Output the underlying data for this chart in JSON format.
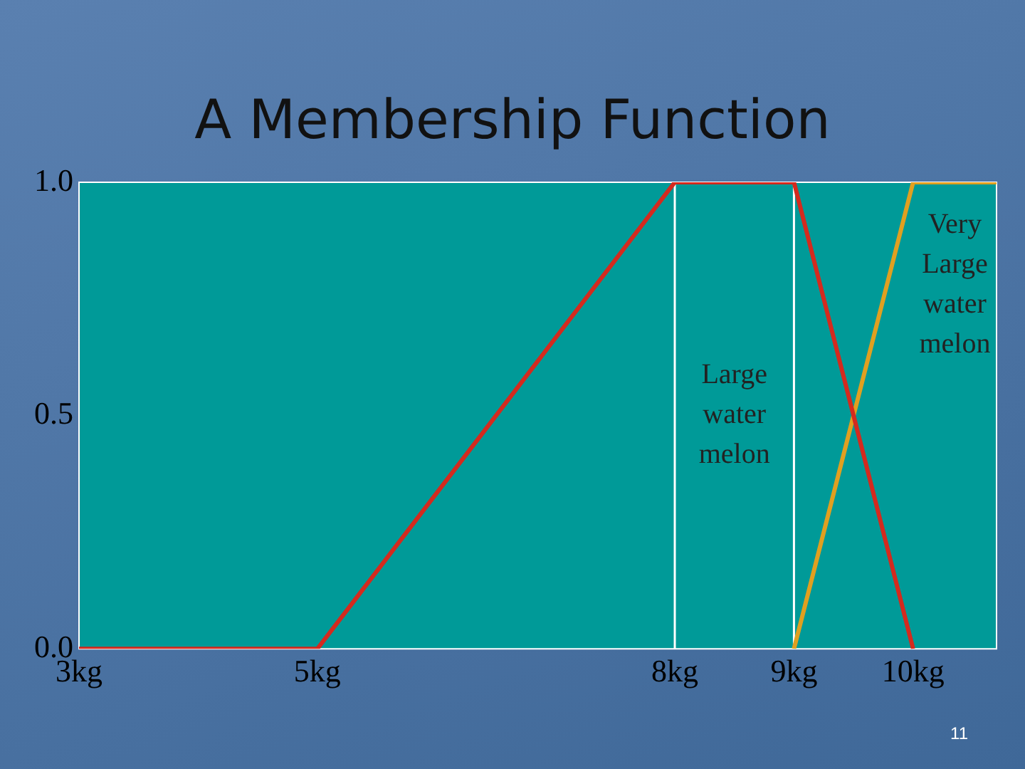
{
  "chart_data": {
    "type": "line",
    "title": "A Membership Function",
    "xlim": [
      3,
      10.7
    ],
    "xticks": [
      {
        "value": 3,
        "label": "3kg"
      },
      {
        "value": 5,
        "label": "5kg"
      },
      {
        "value": 8,
        "label": "8kg"
      },
      {
        "value": 9,
        "label": "9kg"
      },
      {
        "value": 10,
        "label": "10kg"
      }
    ],
    "ylim": [
      0,
      1
    ],
    "yticks": [
      {
        "value": 0,
        "label": "0.0"
      },
      {
        "value": 0.5,
        "label": "0.5"
      },
      {
        "value": 1,
        "label": "1.0"
      }
    ],
    "series": [
      {
        "name": "Large water melon",
        "color": "#d42a1e",
        "x": [
          3,
          5,
          8,
          9,
          10
        ],
        "values": [
          0,
          0,
          1,
          1,
          0
        ]
      },
      {
        "name": "Very Large water melon",
        "color": "#e0a020",
        "x": [
          9,
          10,
          10.7
        ],
        "values": [
          0,
          1,
          1
        ]
      }
    ],
    "ref_lines": [
      {
        "axis": "x",
        "value": 8,
        "color": "#ffffff"
      },
      {
        "axis": "x",
        "value": 9,
        "color": "#ffffff"
      }
    ],
    "annotations": [
      "11"
    ],
    "grid": false,
    "legend": false,
    "marker": "none",
    "line_style": "solid"
  }
}
